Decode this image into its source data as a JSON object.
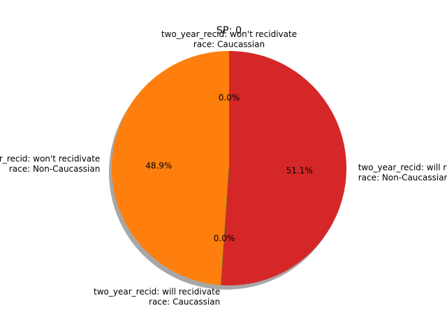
{
  "chart_data": {
    "type": "pie",
    "title": "SP: 0",
    "start_angle_deg": 90,
    "counterclock": true,
    "shadow": true,
    "slices": [
      {
        "label_lines": [
          "two_year_recid: won't recidivate",
          "race: Caucassian"
        ],
        "percent": 0.0,
        "pct_label": "0.0%",
        "color": "#1f77b4"
      },
      {
        "label_lines": [
          "two_year_recid: won't recidivate",
          "race: Non-Caucassian"
        ],
        "percent": 48.9,
        "pct_label": "48.9%",
        "color": "#ff7f0e"
      },
      {
        "label_lines": [
          "two_year_recid: will recidivate",
          "race: Caucassian"
        ],
        "percent": 0.0,
        "pct_label": "0.0%",
        "color": "#2ca02c"
      },
      {
        "label_lines": [
          "two_year_recid: will recidivate",
          "race: Non-Caucassian"
        ],
        "percent": 51.1,
        "pct_label": "51.1%",
        "color": "#d62728"
      }
    ]
  }
}
